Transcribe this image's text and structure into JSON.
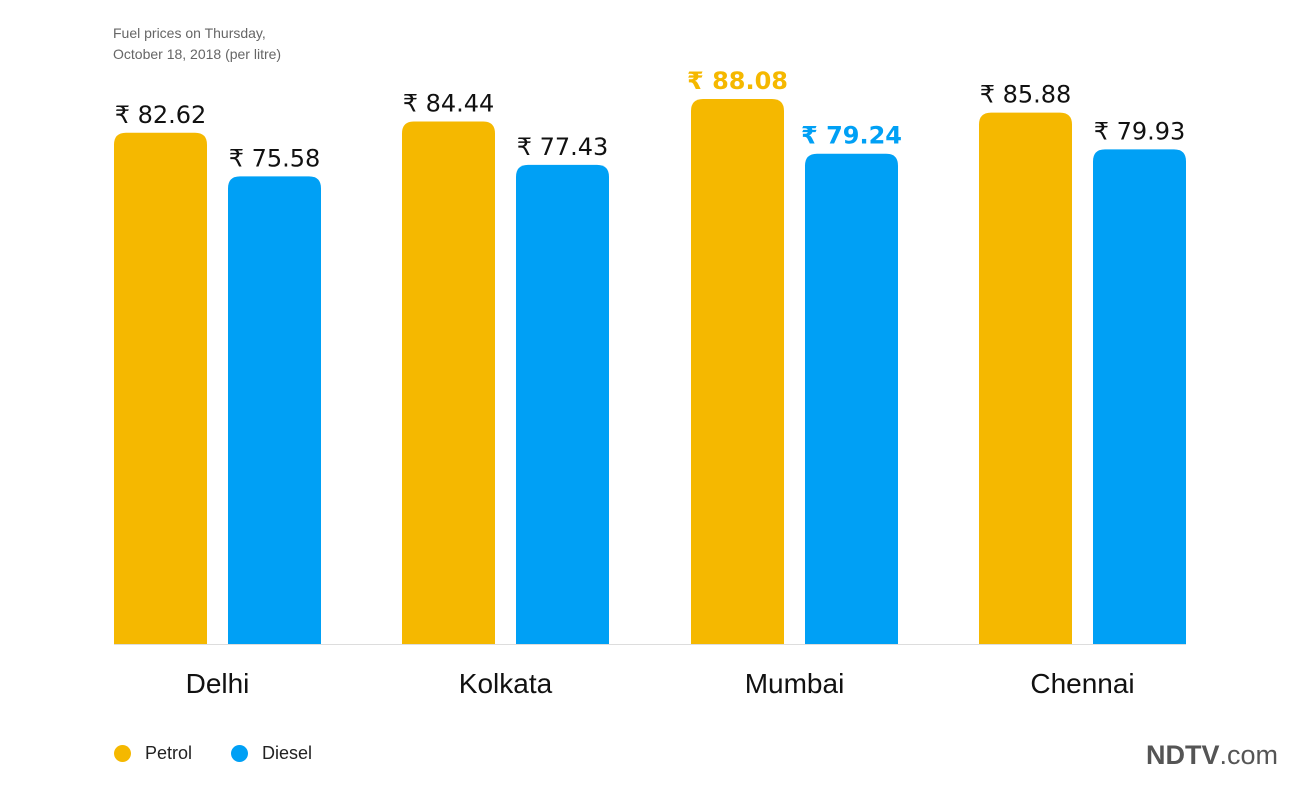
{
  "chart_data": {
    "type": "bar",
    "title_lines": [
      "Fuel prices on Thursday,",
      "October 18, 2018 (per litre)"
    ],
    "categories": [
      "Delhi",
      "Kolkata",
      "Mumbai",
      "Chennai"
    ],
    "series": [
      {
        "name": "Petrol",
        "color": "#F5B800",
        "values": [
          82.62,
          84.44,
          88.08,
          85.88
        ],
        "labels": [
          "₹ 82.62",
          "₹ 84.44",
          "₹ 88.08",
          "₹ 85.88"
        ]
      },
      {
        "name": "Diesel",
        "color": "#00A0F5",
        "values": [
          75.58,
          77.43,
          79.24,
          79.93
        ],
        "labels": [
          "₹ 75.58",
          "₹ 77.43",
          "₹ 79.24",
          "₹ 79.93"
        ]
      }
    ],
    "highlight_category": "Mumbai",
    "ylim": [
      0,
      88.08
    ],
    "grid": false,
    "legend_position": "bottom-left"
  },
  "brand": {
    "name": "NDTV",
    "suffix": ".com"
  },
  "colors": {
    "label": "#111111",
    "axis": "#dddddd",
    "category": "#111111"
  }
}
